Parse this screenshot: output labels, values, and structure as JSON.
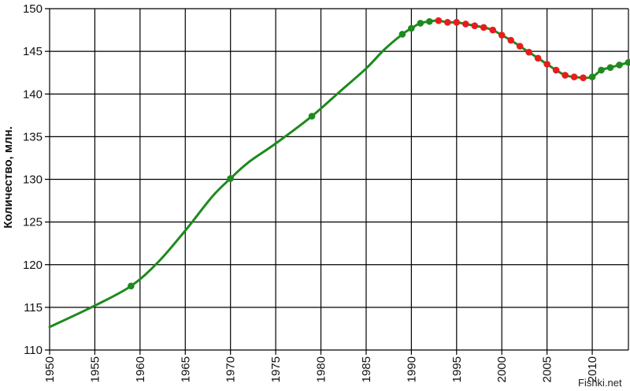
{
  "chart_data": {
    "type": "line",
    "ylabel": "Количество, млн.",
    "xlabel": "",
    "xlim": [
      1950,
      2014
    ],
    "ylim": [
      110,
      150
    ],
    "x_ticks": [
      "1950",
      "1955",
      "1960",
      "1965",
      "1970",
      "1975",
      "1980",
      "1985",
      "1990",
      "1995",
      "2000",
      "2005",
      "2010"
    ],
    "y_ticks": [
      "110",
      "115",
      "120",
      "125",
      "130",
      "135",
      "140",
      "145",
      "150"
    ],
    "grid": true,
    "line_color": "#1e8a1e",
    "increase_color": "#1e8a1e",
    "decrease_color": "#e81c1c",
    "line": [
      {
        "x": 1950,
        "y": 112.7
      },
      {
        "x": 1955,
        "y": 115.2
      },
      {
        "x": 1959,
        "y": 117.5
      },
      {
        "x": 1962,
        "y": 120.3
      },
      {
        "x": 1965,
        "y": 124.0
      },
      {
        "x": 1968,
        "y": 128.0
      },
      {
        "x": 1970,
        "y": 130.1
      },
      {
        "x": 1972,
        "y": 132.0
      },
      {
        "x": 1975,
        "y": 134.2
      },
      {
        "x": 1979,
        "y": 137.4
      },
      {
        "x": 1982,
        "y": 140.2
      },
      {
        "x": 1985,
        "y": 143.0
      },
      {
        "x": 1987,
        "y": 145.2
      },
      {
        "x": 1989,
        "y": 147.0
      },
      {
        "x": 1990,
        "y": 147.7
      },
      {
        "x": 1991,
        "y": 148.3
      },
      {
        "x": 1992,
        "y": 148.5
      },
      {
        "x": 1993,
        "y": 148.6
      },
      {
        "x": 1994,
        "y": 148.4
      },
      {
        "x": 1995,
        "y": 148.4
      },
      {
        "x": 1996,
        "y": 148.2
      },
      {
        "x": 1997,
        "y": 148.0
      },
      {
        "x": 1998,
        "y": 147.8
      },
      {
        "x": 1999,
        "y": 147.5
      },
      {
        "x": 2000,
        "y": 146.9
      },
      {
        "x": 2001,
        "y": 146.3
      },
      {
        "x": 2002,
        "y": 145.6
      },
      {
        "x": 2003,
        "y": 144.9
      },
      {
        "x": 2004,
        "y": 144.2
      },
      {
        "x": 2005,
        "y": 143.5
      },
      {
        "x": 2006,
        "y": 142.8
      },
      {
        "x": 2007,
        "y": 142.2
      },
      {
        "x": 2008,
        "y": 142.0
      },
      {
        "x": 2009,
        "y": 141.9
      },
      {
        "x": 2010,
        "y": 142.0
      },
      {
        "x": 2011,
        "y": 142.8
      },
      {
        "x": 2012,
        "y": 143.1
      },
      {
        "x": 2013,
        "y": 143.4
      },
      {
        "x": 2014,
        "y": 143.7
      }
    ],
    "points": [
      {
        "x": 1959,
        "y": 117.5,
        "trend": "up"
      },
      {
        "x": 1970,
        "y": 130.1,
        "trend": "up"
      },
      {
        "x": 1979,
        "y": 137.4,
        "trend": "up"
      },
      {
        "x": 1989,
        "y": 147.0,
        "trend": "up"
      },
      {
        "x": 1990,
        "y": 147.7,
        "trend": "up"
      },
      {
        "x": 1991,
        "y": 148.3,
        "trend": "up"
      },
      {
        "x": 1992,
        "y": 148.5,
        "trend": "up"
      },
      {
        "x": 1993,
        "y": 148.6,
        "trend": "down"
      },
      {
        "x": 1994,
        "y": 148.4,
        "trend": "down"
      },
      {
        "x": 1995,
        "y": 148.4,
        "trend": "down"
      },
      {
        "x": 1996,
        "y": 148.2,
        "trend": "down"
      },
      {
        "x": 1997,
        "y": 148.0,
        "trend": "down"
      },
      {
        "x": 1998,
        "y": 147.8,
        "trend": "down"
      },
      {
        "x": 1999,
        "y": 147.5,
        "trend": "down"
      },
      {
        "x": 2000,
        "y": 146.9,
        "trend": "down"
      },
      {
        "x": 2001,
        "y": 146.3,
        "trend": "down"
      },
      {
        "x": 2002,
        "y": 145.6,
        "trend": "down"
      },
      {
        "x": 2003,
        "y": 144.9,
        "trend": "down"
      },
      {
        "x": 2004,
        "y": 144.2,
        "trend": "down"
      },
      {
        "x": 2005,
        "y": 143.5,
        "trend": "down"
      },
      {
        "x": 2006,
        "y": 142.8,
        "trend": "down"
      },
      {
        "x": 2007,
        "y": 142.2,
        "trend": "down"
      },
      {
        "x": 2008,
        "y": 142.0,
        "trend": "down"
      },
      {
        "x": 2009,
        "y": 141.9,
        "trend": "down"
      },
      {
        "x": 2010,
        "y": 142.0,
        "trend": "up"
      },
      {
        "x": 2011,
        "y": 142.8,
        "trend": "up"
      },
      {
        "x": 2012,
        "y": 143.1,
        "trend": "up"
      },
      {
        "x": 2013,
        "y": 143.4,
        "trend": "up"
      },
      {
        "x": 2014,
        "y": 143.7,
        "trend": "up"
      }
    ]
  },
  "watermark": "Fishki.net"
}
